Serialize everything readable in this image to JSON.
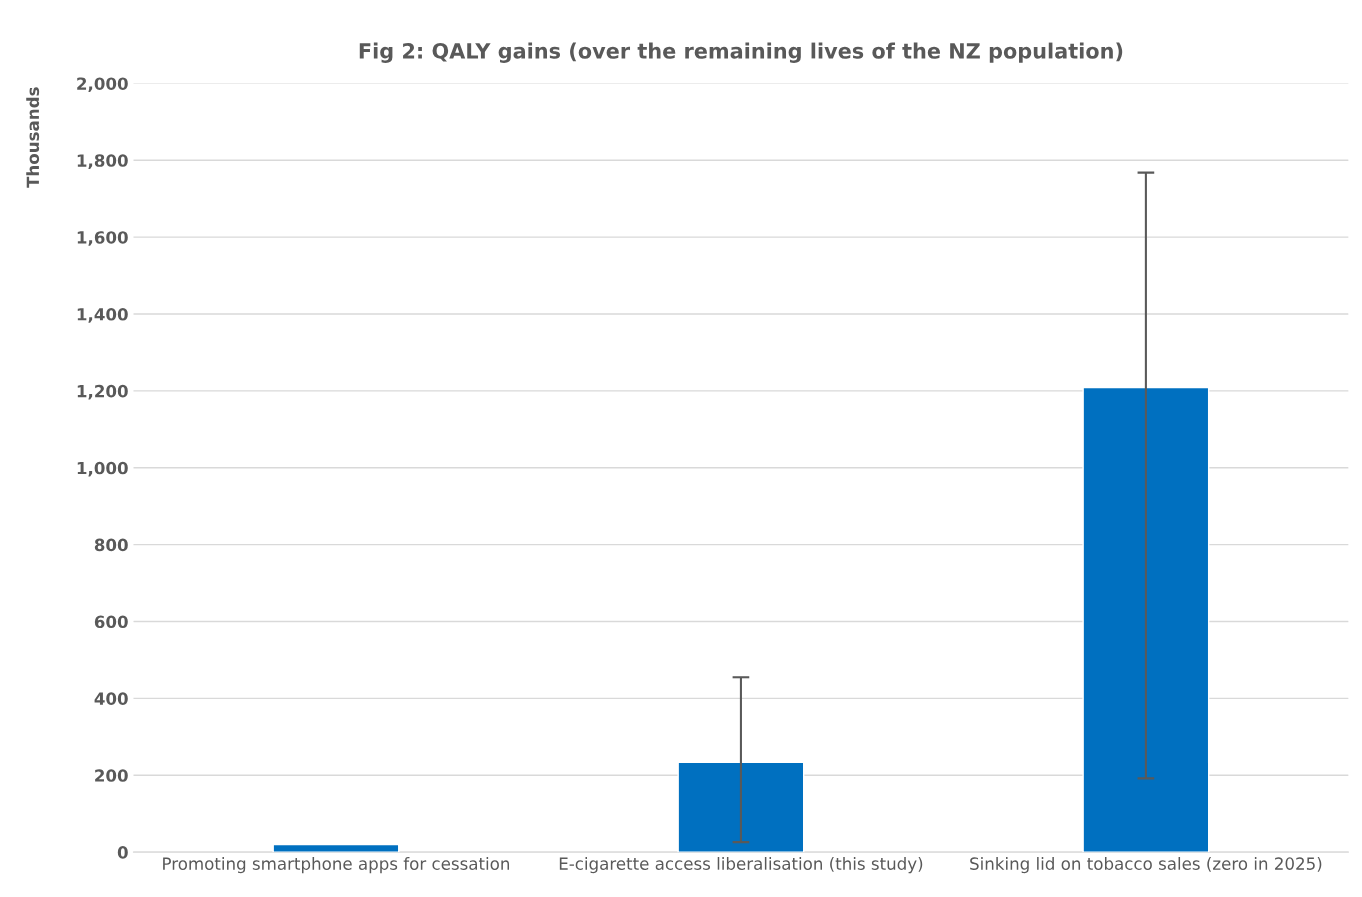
{
  "chart_data": {
    "type": "bar",
    "title": "Fig 2: QALY gains (over the remaining lives of the NZ population)",
    "ylabel": "Thousands",
    "categories": [
      "Promoting smartphone apps for cessation",
      "E-cigarette access liberalisation (this study)",
      "Sinking lid on tobacco sales (zero in 2025)"
    ],
    "values": [
      20,
      234,
      1209
    ],
    "errors": [
      null,
      [
        26,
        455
      ],
      [
        192,
        1768
      ]
    ],
    "color": "#0070c0",
    "ylim": [
      0,
      2000
    ],
    "yticks": [
      {
        "value": 0,
        "label": "0"
      },
      {
        "value": 200,
        "label": "200"
      },
      {
        "value": 400,
        "label": "400"
      },
      {
        "value": 600,
        "label": "600"
      },
      {
        "value": 800,
        "label": "800"
      },
      {
        "value": 1000,
        "label": "1,000"
      },
      {
        "value": 1200,
        "label": "1,200"
      },
      {
        "value": 1400,
        "label": "1,400"
      },
      {
        "value": 1600,
        "label": "1,600"
      },
      {
        "value": 1800,
        "label": "1,800"
      },
      {
        "value": 2000,
        "label": "2,000"
      }
    ],
    "grid": "y"
  }
}
